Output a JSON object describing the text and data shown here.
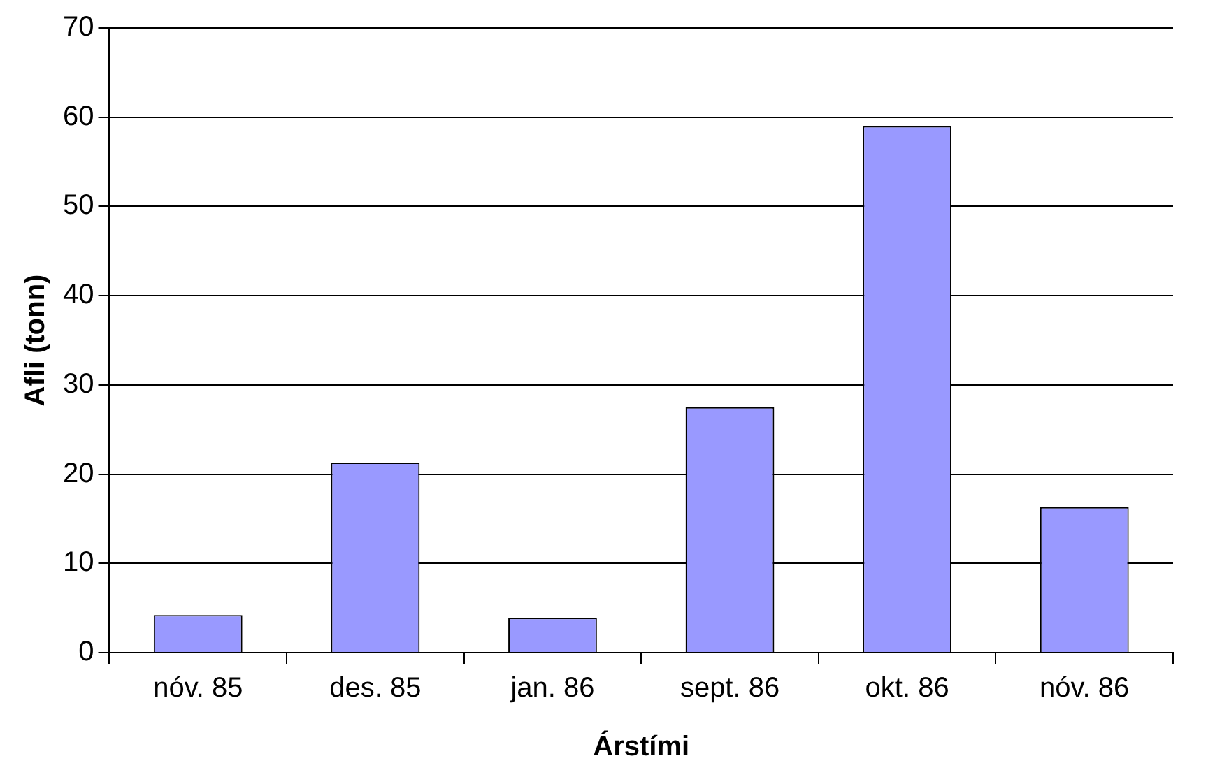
{
  "chart_data": {
    "type": "bar",
    "xlabel": "Árstími",
    "ylabel": "Afli (tonn)",
    "categories": [
      "nóv. 85",
      "des. 85",
      "jan. 86",
      "sept. 86",
      "okt. 86",
      "nóv. 86"
    ],
    "values": [
      4.2,
      21.3,
      3.9,
      27.5,
      59,
      16.3
    ],
    "color": "#9999ff",
    "ylim": [
      0,
      70
    ],
    "yticks": [
      0,
      10,
      20,
      30,
      40,
      50,
      60,
      70
    ],
    "grid": "y",
    "legend": false
  }
}
